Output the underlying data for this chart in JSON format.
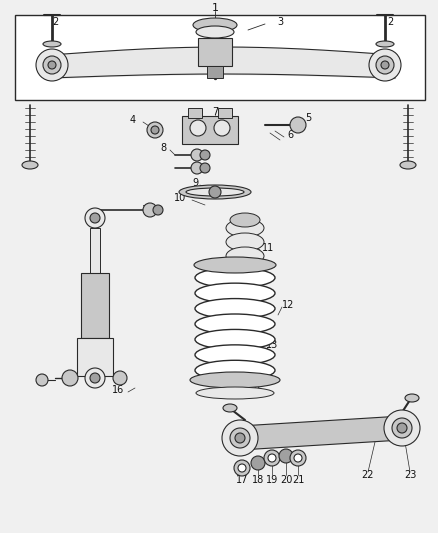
{
  "bg_color": "#f0f0f0",
  "line_color": "#2a2a2a",
  "fill_light": "#e8e8e8",
  "fill_mid": "#c8c8c8",
  "fill_dark": "#a0a0a0"
}
